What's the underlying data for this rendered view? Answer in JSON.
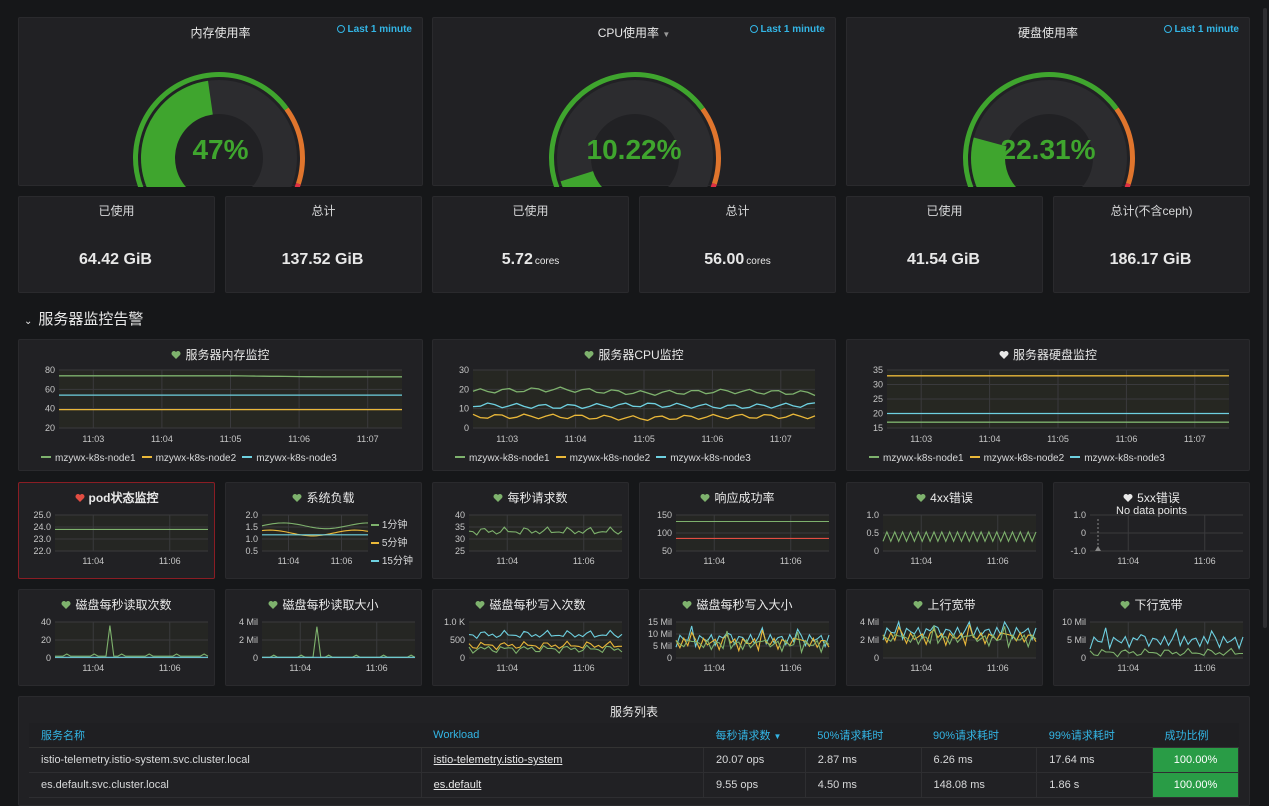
{
  "gauges": [
    {
      "title": "内存使用率",
      "range": "Last 1 minute",
      "value_text": "47%",
      "value": 47
    },
    {
      "title": "CPU使用率",
      "range": "Last 1 minute",
      "value_text": "10.22%",
      "value": 10.22
    },
    {
      "title": "硬盘使用率",
      "range": "Last 1 minute",
      "value_text": "22.31%",
      "value": 22.31
    }
  ],
  "stats": [
    {
      "label": "已使用",
      "value": "64.42 GiB",
      "unit": ""
    },
    {
      "label": "总计",
      "value": "137.52 GiB",
      "unit": ""
    },
    {
      "label": "已使用",
      "value": "5.72",
      "unit": "cores"
    },
    {
      "label": "总计",
      "value": "56.00",
      "unit": "cores"
    },
    {
      "label": "已使用",
      "value": "41.54 GiB",
      "unit": ""
    },
    {
      "label": "总计(不含ceph)",
      "value": "186.17 GiB",
      "unit": ""
    }
  ],
  "row_title": "服务器监控告警",
  "legend_series": [
    "mzywx-k8s-node1",
    "mzywx-k8s-node2",
    "mzywx-k8s-node3"
  ],
  "colors": {
    "green": "#7eb26d",
    "yellow": "#eab839",
    "cyan": "#6ed0e0",
    "red": "#e24d42",
    "accent": "#33b5e5",
    "ok": "#299c46"
  },
  "big_panels": [
    {
      "title": "服务器内存监控",
      "heart": "green"
    },
    {
      "title": "服务器CPU监控",
      "heart": "green"
    },
    {
      "title": "服务器硬盘监控",
      "heart": "white"
    }
  ],
  "small_panels_row1": [
    {
      "title": "pod状态监控",
      "heart": "red"
    },
    {
      "title": "系统负载",
      "heart": "green"
    },
    {
      "title": "每秒请求数",
      "heart": "green"
    },
    {
      "title": "响应成功率",
      "heart": "green"
    },
    {
      "title": "4xx错误",
      "heart": "green"
    },
    {
      "title": "5xx错误",
      "heart": "white",
      "nodata": "No data points"
    }
  ],
  "load_legend": [
    "1分钟",
    "5分钟",
    "15分钟"
  ],
  "small_panels_row2": [
    {
      "title": "磁盘每秒读取次数",
      "heart": "green"
    },
    {
      "title": "磁盘每秒读取大小",
      "heart": "green"
    },
    {
      "title": "磁盘每秒写入次数",
      "heart": "green"
    },
    {
      "title": "磁盘每秒写入大小",
      "heart": "green"
    },
    {
      "title": "上行宽带",
      "heart": "green"
    },
    {
      "title": "下行宽带",
      "heart": "green"
    }
  ],
  "chart_data": [
    {
      "type": "line",
      "title": "服务器内存监控",
      "x": [
        "11:03",
        "11:04",
        "11:05",
        "11:06",
        "11:07"
      ],
      "yticks": [
        "20",
        "40",
        "60",
        "80"
      ],
      "ylim": [
        20,
        80
      ],
      "series": [
        {
          "name": "mzywx-k8s-node1",
          "values": [
            74,
            74,
            74,
            73,
            73
          ]
        },
        {
          "name": "mzywx-k8s-node2",
          "values": [
            39,
            39,
            39,
            39,
            39
          ]
        },
        {
          "name": "mzywx-k8s-node3",
          "values": [
            54,
            54,
            54,
            54,
            54
          ]
        }
      ]
    },
    {
      "type": "line",
      "title": "服务器CPU监控",
      "x": [
        "11:03",
        "11:04",
        "11:05",
        "11:06",
        "11:07"
      ],
      "yticks": [
        "0",
        "10",
        "20",
        "30"
      ],
      "ylim": [
        0,
        30
      ],
      "series": [
        {
          "name": "mzywx-k8s-node1",
          "values": [
            19,
            20,
            18,
            19,
            18
          ]
        },
        {
          "name": "mzywx-k8s-node2",
          "values": [
            6,
            6,
            5,
            6,
            6
          ]
        },
        {
          "name": "mzywx-k8s-node3",
          "values": [
            12,
            11,
            12,
            11,
            12
          ]
        }
      ]
    },
    {
      "type": "line",
      "title": "服务器硬盘监控",
      "x": [
        "11:03",
        "11:04",
        "11:05",
        "11:06",
        "11:07"
      ],
      "yticks": [
        "15",
        "20",
        "25",
        "30",
        "35"
      ],
      "ylim": [
        15,
        35
      ],
      "series": [
        {
          "name": "mzywx-k8s-node1",
          "values": [
            17,
            17,
            17,
            17,
            17
          ]
        },
        {
          "name": "mzywx-k8s-node2",
          "values": [
            33,
            33,
            33,
            33,
            33
          ]
        },
        {
          "name": "mzywx-k8s-node3",
          "values": [
            20,
            20,
            20,
            20,
            20
          ]
        }
      ]
    }
  ],
  "small_axes": {
    "pod": {
      "yticks": [
        "22.0",
        "23.0",
        "24.0",
        "25.0"
      ],
      "x": [
        "11:04",
        "11:06"
      ]
    },
    "load": {
      "yticks": [
        "0.5",
        "1.0",
        "1.5",
        "2.0"
      ],
      "x": [
        "11:04",
        "11:06"
      ]
    },
    "rps": {
      "yticks": [
        "25",
        "30",
        "35",
        "40"
      ],
      "x": [
        "11:04",
        "11:06"
      ]
    },
    "success": {
      "yticks": [
        "50",
        "100",
        "150"
      ],
      "x": [
        "11:04",
        "11:06"
      ]
    },
    "e4xx": {
      "yticks": [
        "0",
        "0.5",
        "1.0"
      ],
      "x": [
        "11:04",
        "11:06"
      ]
    },
    "e5xx": {
      "yticks": [
        "-1.0",
        "0",
        "1.0"
      ],
      "x": [
        "11:04",
        "11:06"
      ]
    },
    "dread": {
      "yticks": [
        "0",
        "20",
        "40"
      ],
      "x": [
        "11:04",
        "11:06"
      ]
    },
    "dreadsz": {
      "yticks": [
        "0",
        "2 Mil",
        "4 Mil"
      ],
      "x": [
        "11:04",
        "11:06"
      ]
    },
    "dwrite": {
      "yticks": [
        "0",
        "500",
        "1.0 K"
      ],
      "x": [
        "11:04",
        "11:06"
      ]
    },
    "dwritesz": {
      "yticks": [
        "0",
        "5 Mil",
        "10 Mil",
        "15 Mil"
      ],
      "x": [
        "11:04",
        "11:06"
      ]
    },
    "up": {
      "yticks": [
        "0",
        "2 Mil",
        "4 Mil"
      ],
      "x": [
        "11:04",
        "11:06"
      ]
    },
    "down": {
      "yticks": [
        "0",
        "5 Mil",
        "10 Mil"
      ],
      "x": [
        "11:04",
        "11:06"
      ]
    }
  },
  "service_list": {
    "title": "服务列表",
    "headers": [
      "服务名称",
      "Workload",
      "每秒请求数",
      "50%请求耗时",
      "90%请求耗时",
      "99%请求耗时",
      "成功比例"
    ],
    "rows": [
      [
        "istio-telemetry.istio-system.svc.cluster.local",
        "istio-telemetry.istio-system",
        "20.07 ops",
        "2.87 ms",
        "6.26 ms",
        "17.64 ms",
        "100.00%"
      ],
      [
        "es.default.svc.cluster.local",
        "es.default",
        "9.55 ops",
        "4.50 ms",
        "148.08 ms",
        "1.86 s",
        "100.00%"
      ]
    ]
  }
}
